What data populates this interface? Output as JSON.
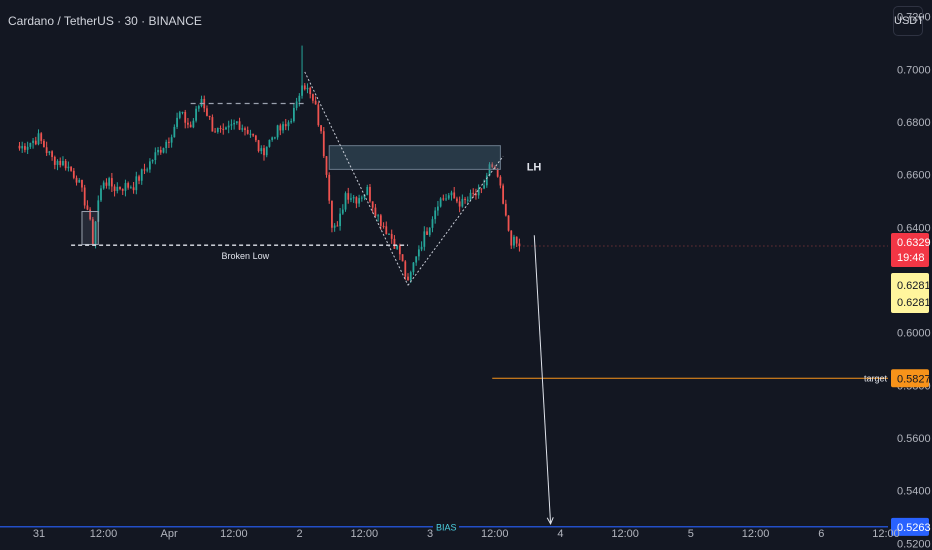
{
  "header": {
    "symbol_title": "Cardano / TetherUS · 30 · BINANCE",
    "currency_button": "USDT"
  },
  "colors": {
    "background": "#131722",
    "up": "#26a69a",
    "down": "#ef5350",
    "axis_text": "#b2b5be",
    "bias_line": "#2962ff",
    "target_line": "#f7931a"
  },
  "chart_data": {
    "type": "candlestick",
    "title": "Cardano / TetherUS · 30 · BINANCE",
    "xlabel": "",
    "ylabel": "",
    "ylim": [
      0.5175,
      0.7263
    ],
    "grid": false,
    "y_tick_labels": [
      "0.7200",
      "0.7000",
      "0.6800",
      "0.6600",
      "0.6400",
      "0.6000",
      "0.5800",
      "0.5600",
      "0.5400",
      "0.5200"
    ],
    "y_ticks": [
      0.72,
      0.7,
      0.68,
      0.66,
      0.64,
      0.6,
      0.58,
      0.56,
      0.54,
      0.52
    ],
    "x_tick_labels": [
      "31",
      "12:00",
      "Apr",
      "12:00",
      "2",
      "12:00",
      "3",
      "12:00",
      "4",
      "12:00",
      "5",
      "12:00",
      "6",
      "12:00"
    ],
    "x_ticks_bar_index": [
      0,
      24,
      48,
      72,
      96,
      120,
      144,
      168,
      192,
      216,
      240,
      264,
      288,
      312
    ],
    "bars_from_index": -7,
    "path_anchors": [
      [
        -7,
        0.67
      ],
      [
        0,
        0.674
      ],
      [
        5,
        0.666
      ],
      [
        10,
        0.664
      ],
      [
        14,
        0.659
      ],
      [
        18,
        0.647
      ],
      [
        20,
        0.635
      ],
      [
        22,
        0.65
      ],
      [
        24,
        0.658
      ],
      [
        28,
        0.655
      ],
      [
        35,
        0.656
      ],
      [
        42,
        0.666
      ],
      [
        48,
        0.674
      ],
      [
        52,
        0.683
      ],
      [
        56,
        0.678
      ],
      [
        60,
        0.689
      ],
      [
        64,
        0.678
      ],
      [
        68,
        0.675
      ],
      [
        73,
        0.68
      ],
      [
        78,
        0.676
      ],
      [
        82,
        0.668
      ],
      [
        87,
        0.676
      ],
      [
        91,
        0.678
      ],
      [
        95,
        0.686
      ],
      [
        97,
        0.696
      ],
      [
        99,
        0.692
      ],
      [
        102,
        0.685
      ],
      [
        104,
        0.675
      ],
      [
        106,
        0.662
      ],
      [
        108,
        0.642
      ],
      [
        110,
        0.639
      ],
      [
        113,
        0.653
      ],
      [
        117,
        0.651
      ],
      [
        121,
        0.654
      ],
      [
        125,
        0.644
      ],
      [
        130,
        0.636
      ],
      [
        133,
        0.63
      ],
      [
        136,
        0.618
      ],
      [
        139,
        0.63
      ],
      [
        143,
        0.639
      ],
      [
        147,
        0.65
      ],
      [
        151,
        0.652
      ],
      [
        156,
        0.649
      ],
      [
        160,
        0.652
      ],
      [
        163,
        0.653
      ],
      [
        166,
        0.663
      ],
      [
        169,
        0.659
      ],
      [
        172,
        0.643
      ],
      [
        174,
        0.635
      ],
      [
        177,
        0.6329
      ]
    ],
    "wick_highs": [
      [
        97,
        0.709
      ]
    ],
    "current_price": "0.6329",
    "countdown": "19:48",
    "bid_price": "0.6281",
    "ask_price": "0.6281",
    "annotations": {
      "broken_low": {
        "label": "Broken Low",
        "price": 0.6332,
        "from_bar": 12,
        "to_bar": 136
      },
      "prior_high_line": {
        "price": 0.687,
        "from_bar": 56,
        "to_bar": 99
      },
      "supply_zone": {
        "price_top": 0.671,
        "price_bottom": 0.662,
        "from_bar": 107,
        "to_bar": 170
      },
      "demand_box": {
        "price_top": 0.646,
        "price_bottom": 0.6335,
        "from_bar": 16,
        "to_bar": 22
      },
      "lower_high": {
        "label": "LH",
        "price": 0.66,
        "bar": 176
      },
      "target": {
        "label": "target",
        "price": 0.5827,
        "value_label": "0.5827",
        "from_bar": 167
      },
      "bias": {
        "label": "BIAS",
        "price": 0.5263,
        "value_label": "0.5263"
      },
      "projection_arrow": {
        "from_bar": 181,
        "from_price": 0.637,
        "to_bar": 187,
        "to_price": 0.5263
      }
    }
  }
}
